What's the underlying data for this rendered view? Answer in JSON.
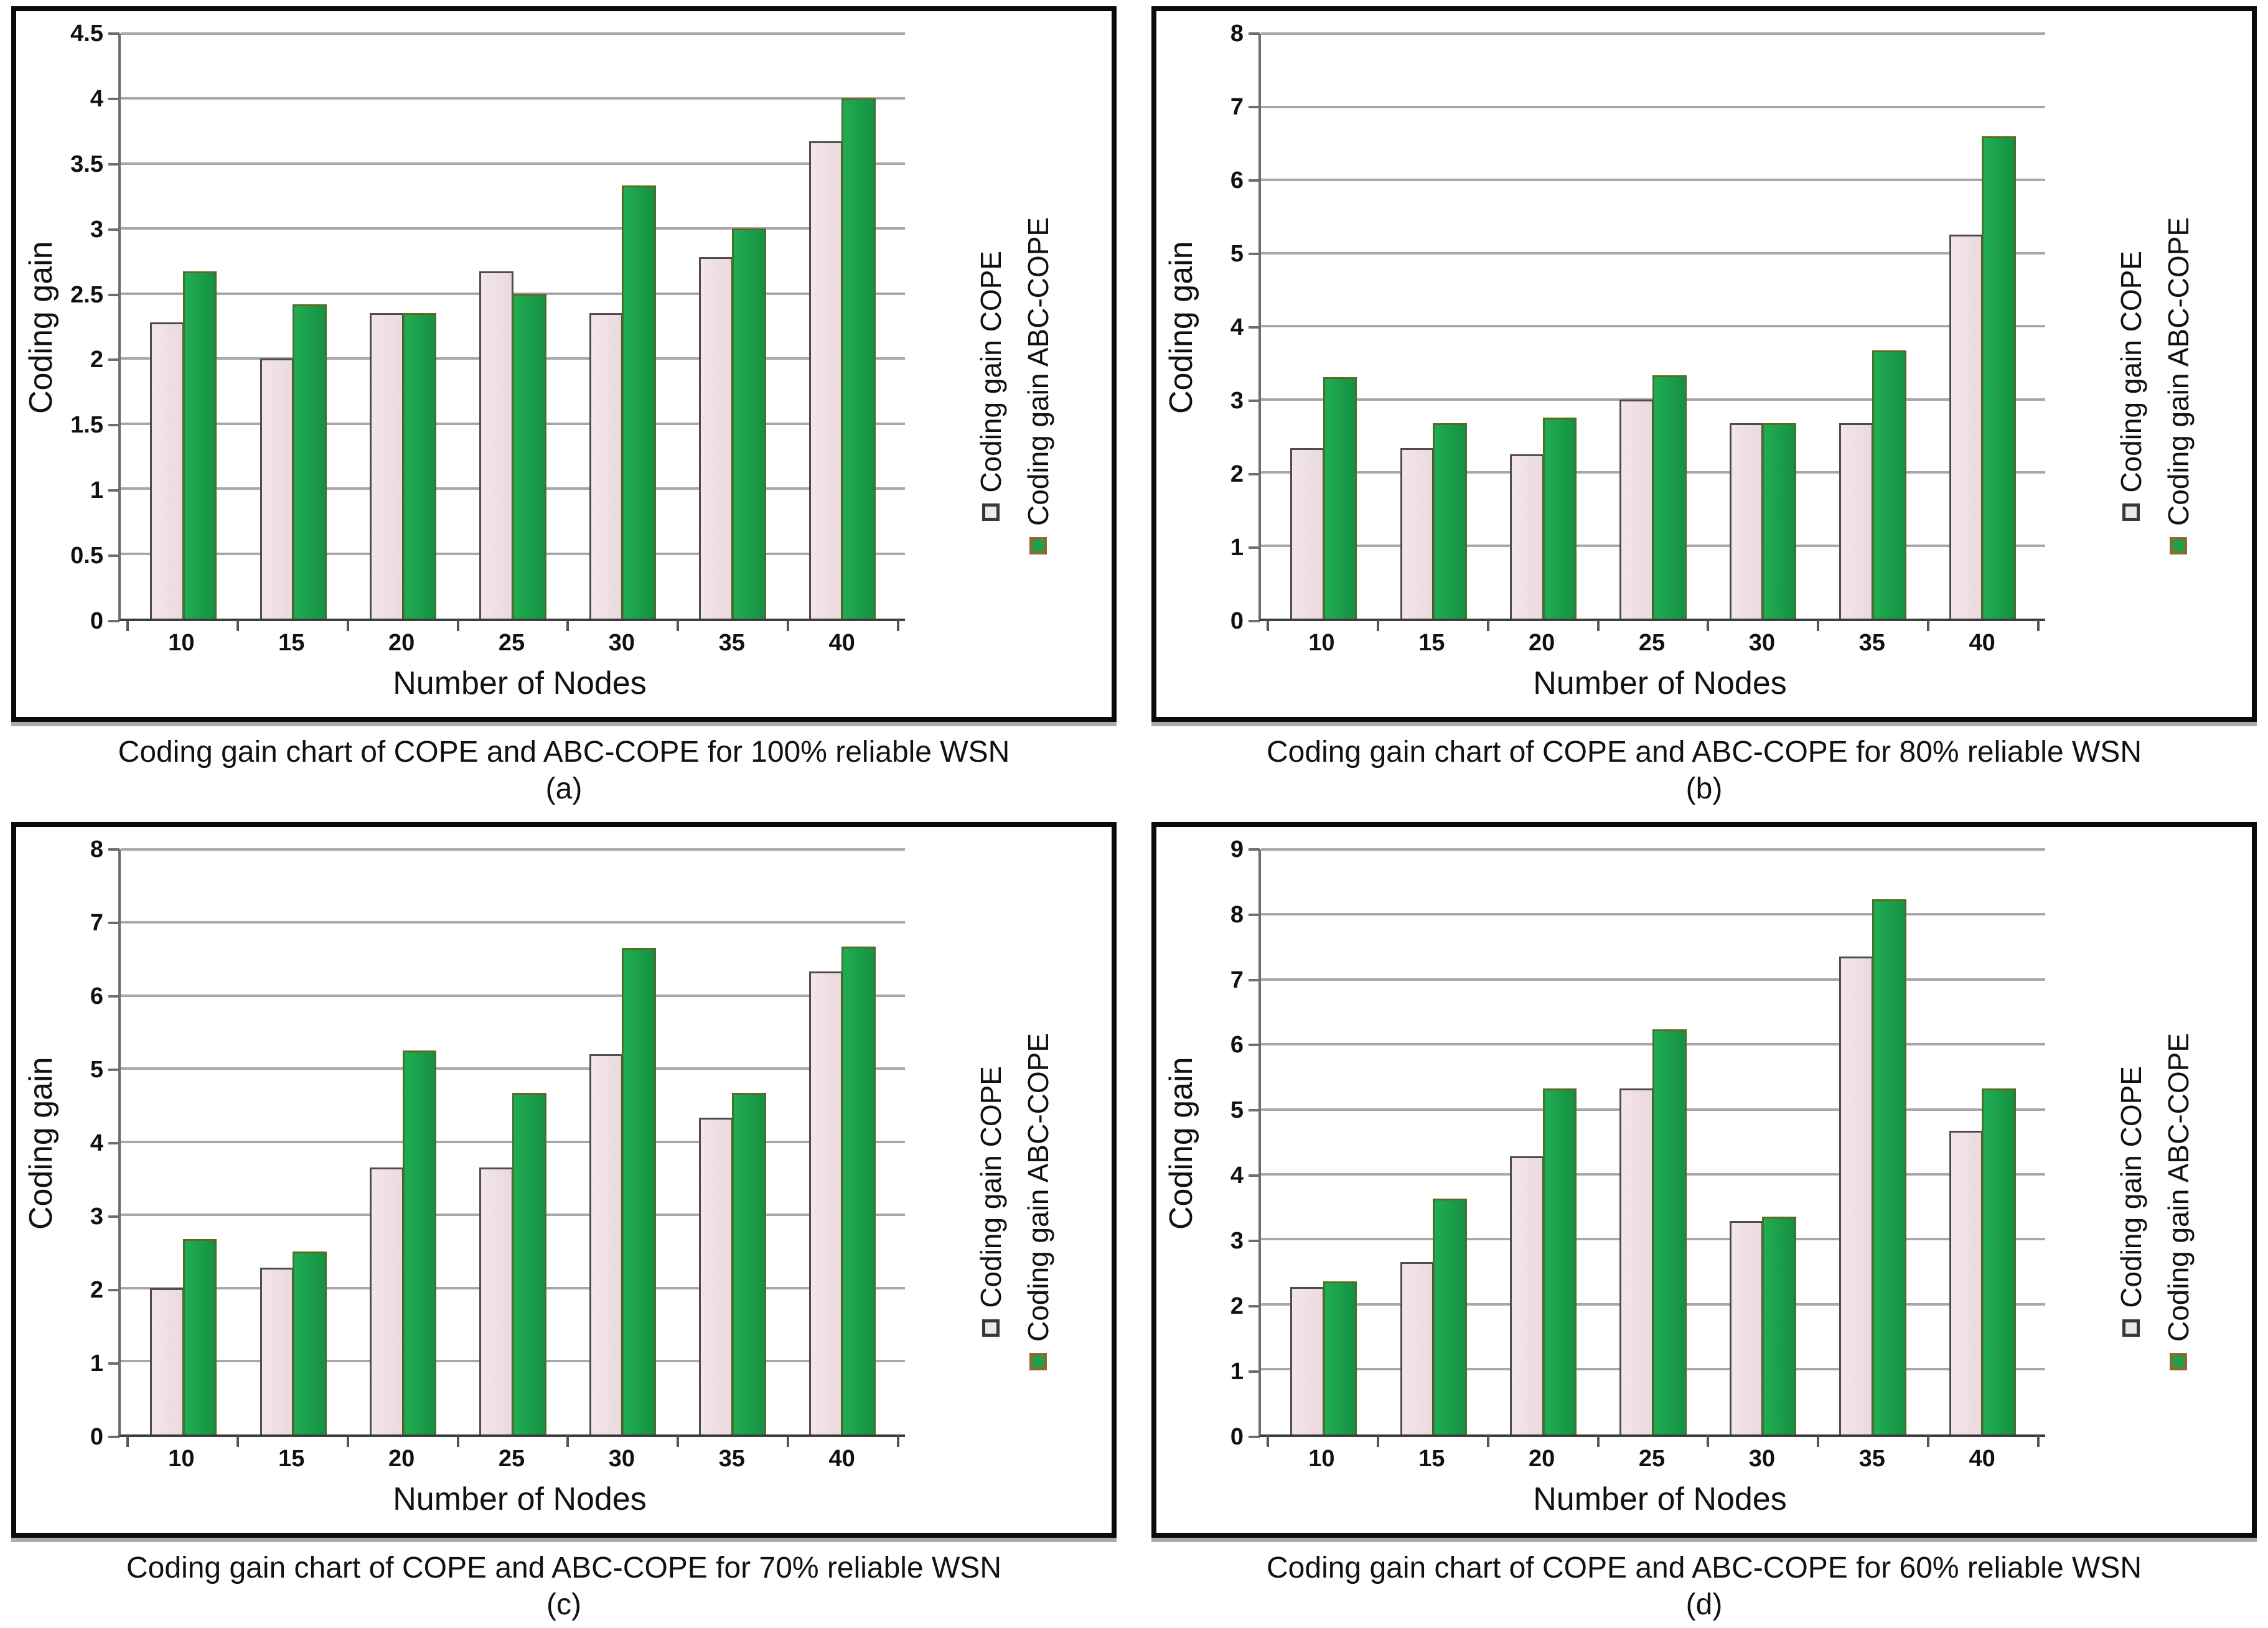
{
  "colors": {
    "cope_bar_fill": "#eedddf",
    "cope_bar_border": "#4d4d4d",
    "abc_bar_fill": "#1aa34b",
    "abc_bar_border": "#44722c",
    "gridline": "#a8a8a8",
    "axis": "#6e6e6e",
    "panel_border": "#0b0b0b"
  },
  "chart_data": [
    {
      "id": "a",
      "type": "bar",
      "title_caption": "Coding gain chart of COPE and ABC-COPE for 100% reliable WSN",
      "letter": "(a)",
      "xlabel": "Number of Nodes",
      "ylabel": "Coding gain",
      "categories": [
        "10",
        "15",
        "20",
        "25",
        "30",
        "35",
        "40"
      ],
      "series": [
        {
          "name": "Coding gain COPE",
          "values": [
            2.28,
            2.0,
            2.35,
            2.67,
            2.35,
            2.78,
            3.67
          ]
        },
        {
          "name": "Coding gain ABC-COPE",
          "values": [
            2.67,
            2.42,
            2.35,
            2.5,
            3.33,
            3.0,
            4.0
          ]
        }
      ],
      "ylim": [
        0,
        4.5
      ],
      "ytick_step": 0.5,
      "grid": true,
      "legend_position": "right"
    },
    {
      "id": "b",
      "type": "bar",
      "title_caption": "Coding gain chart of COPE and ABC-COPE for 80% reliable WSN",
      "letter": "(b)",
      "xlabel": "Number of Nodes",
      "ylabel": "Coding gain",
      "categories": [
        "10",
        "15",
        "20",
        "25",
        "30",
        "35",
        "40"
      ],
      "series": [
        {
          "name": "Coding gain COPE",
          "values": [
            2.33,
            2.33,
            2.25,
            3.0,
            2.67,
            2.67,
            5.25
          ]
        },
        {
          "name": "Coding gain ABC-COPE",
          "values": [
            3.3,
            2.67,
            2.75,
            3.33,
            2.67,
            3.67,
            6.6
          ]
        }
      ],
      "ylim": [
        0,
        8
      ],
      "ytick_step": 1,
      "grid": true,
      "legend_position": "right"
    },
    {
      "id": "c",
      "type": "bar",
      "title_caption": "Coding gain chart of COPE and ABC-COPE for 70% reliable WSN",
      "letter": "(c)",
      "xlabel": "Number of Nodes",
      "ylabel": "Coding gain",
      "categories": [
        "10",
        "15",
        "20",
        "25",
        "30",
        "35",
        "40"
      ],
      "series": [
        {
          "name": "Coding gain COPE",
          "values": [
            2.0,
            2.28,
            3.65,
            3.65,
            5.2,
            4.33,
            6.33
          ]
        },
        {
          "name": "Coding gain ABC-COPE",
          "values": [
            2.67,
            2.5,
            5.25,
            4.67,
            6.65,
            4.67,
            6.67
          ]
        }
      ],
      "ylim": [
        0,
        8
      ],
      "ytick_step": 1,
      "grid": true,
      "legend_position": "right"
    },
    {
      "id": "d",
      "type": "bar",
      "title_caption": "Coding gain chart of COPE and ABC-COPE for 60% reliable WSN",
      "letter": "(d)",
      "xlabel": "Number of Nodes",
      "ylabel": "Coding gain",
      "categories": [
        "10",
        "15",
        "20",
        "25",
        "30",
        "35",
        "40"
      ],
      "series": [
        {
          "name": "Coding gain COPE",
          "values": [
            2.27,
            2.65,
            4.28,
            5.32,
            3.28,
            7.35,
            4.67
          ]
        },
        {
          "name": "Coding gain ABC-COPE",
          "values": [
            2.35,
            3.63,
            5.32,
            6.23,
            3.35,
            8.23,
            5.32
          ]
        }
      ],
      "ylim": [
        0,
        9
      ],
      "ytick_step": 1,
      "grid": true,
      "legend_position": "right"
    }
  ]
}
